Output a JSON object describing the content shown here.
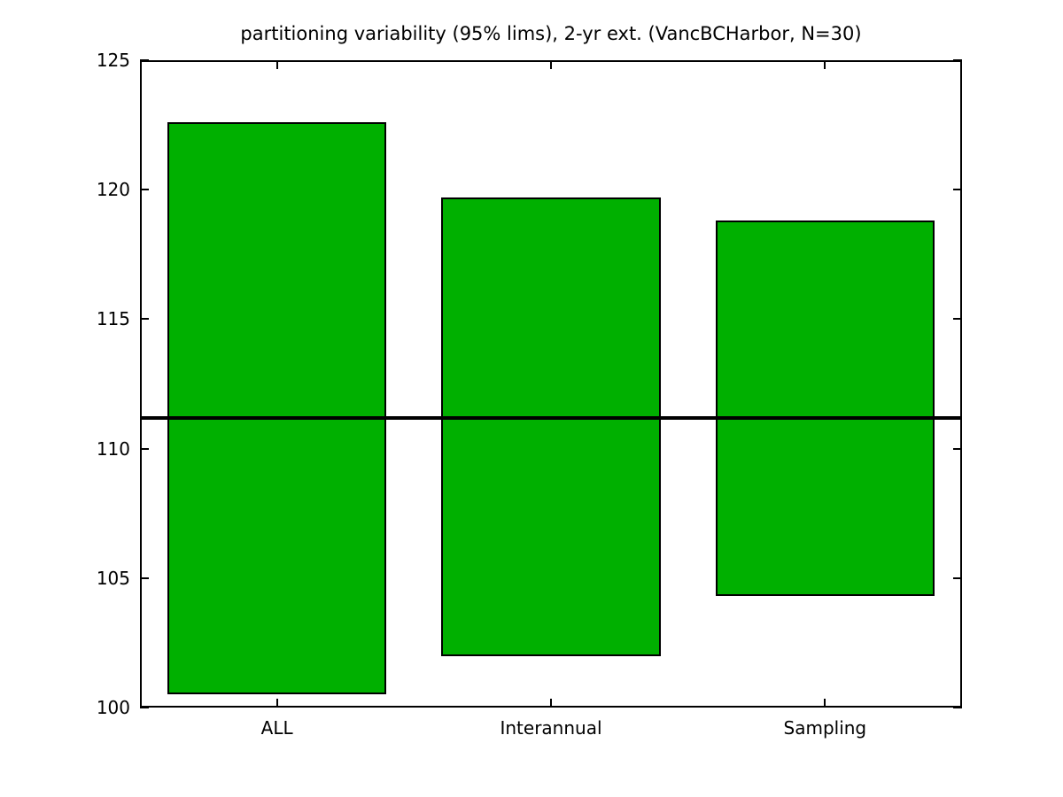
{
  "chart_data": {
    "type": "bar",
    "bar_style": "floating-range",
    "title": "partitioning variability (95% lims), 2-yr ext. (VancBCHarbor, N=30)",
    "categories": [
      "ALL",
      "Interannual",
      "Sampling"
    ],
    "series": [
      {
        "name": "95% limits",
        "ranges": [
          {
            "category": "ALL",
            "low": 100.5,
            "high": 122.6
          },
          {
            "category": "Interannual",
            "low": 102.0,
            "high": 119.7
          },
          {
            "category": "Sampling",
            "low": 104.3,
            "high": 118.8
          }
        ]
      }
    ],
    "reference_line": {
      "value": 111.2,
      "color": "#000000"
    },
    "ylim": [
      100,
      125
    ],
    "yticks": [
      100,
      105,
      110,
      115,
      120,
      125
    ],
    "xlabel": "",
    "ylabel": "",
    "grid": false,
    "legend": "none",
    "bar_color": "#00B000",
    "bar_edge_color": "#000000",
    "bar_width": 0.8,
    "axis_color": "#000000",
    "background_color": "#ffffff"
  }
}
